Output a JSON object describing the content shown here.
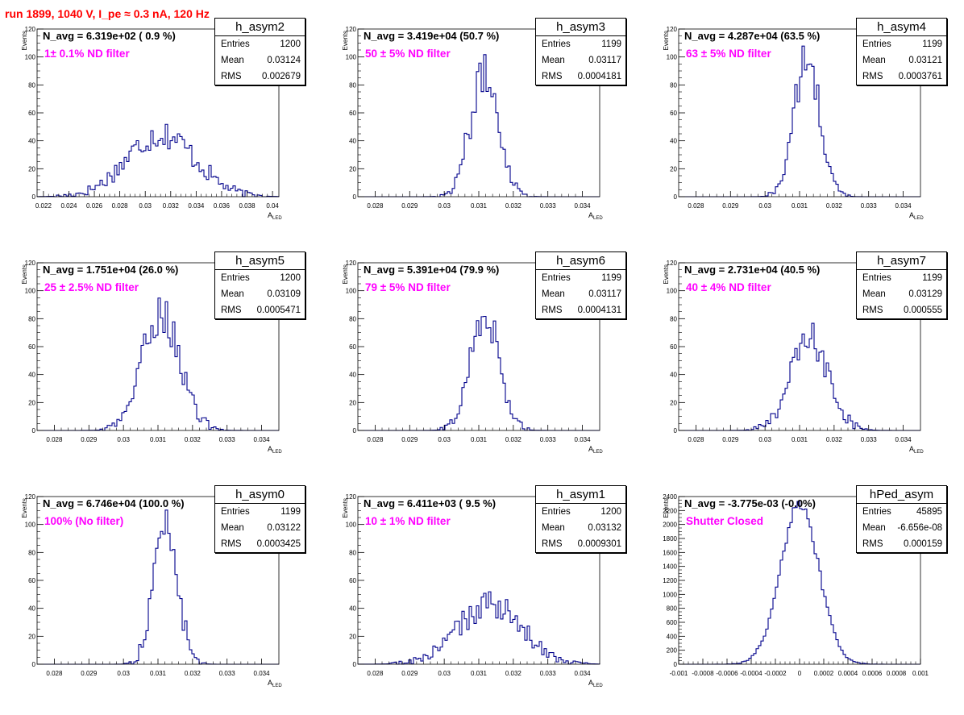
{
  "page": {
    "title": "run 1899,  1040 V, I_pe ≈ 0.3 nA, 120 Hz",
    "colors": {
      "title": "#ff0000",
      "histogram": "#00008b",
      "annotation": "#ff00ff",
      "axis": "#000000"
    }
  },
  "labels": {
    "entries": "Entries",
    "mean": "Mean",
    "rms": "RMS"
  },
  "chart_data": [
    {
      "type": "histogram",
      "name": "h_asym2",
      "header": "N_avg = 6.319e+02 ( 0.9 %)",
      "annotation": "1± 0.1% ND filter",
      "stats": {
        "entries": "1200",
        "mean": "0.03124",
        "rms": "0.002679"
      },
      "xlabel": "A",
      "xlabel_sub": "LED",
      "ylabel": "Events",
      "xlim": [
        0.0215,
        0.0405
      ],
      "ylim": [
        0,
        120
      ],
      "xticks": [
        0.022,
        0.024,
        0.026,
        0.028,
        0.03,
        0.032,
        0.034,
        0.036,
        0.038,
        0.04
      ],
      "xtick_labels": [
        "0.022",
        "0.024",
        "0.026",
        "0.028",
        "0.03",
        "0.032",
        "0.034",
        "0.036",
        "0.038",
        "0.04"
      ],
      "yticks": [
        0,
        20,
        40,
        60,
        80,
        100,
        120
      ],
      "ytick_labels": [
        "0",
        "20",
        "40",
        "60",
        "80",
        "100",
        "120"
      ],
      "mean": 0.03124,
      "rms": 0.002679,
      "entries": 1200,
      "bins": 100,
      "peak": 45
    },
    {
      "type": "histogram",
      "name": "h_asym3",
      "header": "N_avg = 3.419e+04 (50.7 %)",
      "annotation": "50 ± 5% ND filter",
      "stats": {
        "entries": "1199",
        "mean": "0.03117",
        "rms": "0.0004181"
      },
      "xlabel": "A",
      "xlabel_sub": "LED",
      "ylabel": "Events",
      "xlim": [
        0.0275,
        0.0345
      ],
      "ylim": [
        0,
        120
      ],
      "xticks": [
        0.028,
        0.029,
        0.03,
        0.031,
        0.032,
        0.033,
        0.034
      ],
      "xtick_labels": [
        "0.028",
        "0.029",
        "0.03",
        "0.031",
        "0.032",
        "0.033",
        "0.034"
      ],
      "yticks": [
        0,
        20,
        40,
        60,
        80,
        100,
        120
      ],
      "ytick_labels": [
        "0",
        "20",
        "40",
        "60",
        "80",
        "100",
        "120"
      ],
      "mean": 0.03117,
      "rms": 0.0004181,
      "entries": 1199,
      "bins": 100,
      "peak": 87
    },
    {
      "type": "histogram",
      "name": "h_asym4",
      "header": "N_avg = 4.287e+04 (63.5 %)",
      "annotation": "63 ± 5% ND filter",
      "stats": {
        "entries": "1199",
        "mean": "0.03121",
        "rms": "0.0003761"
      },
      "xlabel": "A",
      "xlabel_sub": "LED",
      "ylabel": "Events",
      "xlim": [
        0.0275,
        0.0345
      ],
      "ylim": [
        0,
        120
      ],
      "xticks": [
        0.028,
        0.029,
        0.03,
        0.031,
        0.032,
        0.033,
        0.034
      ],
      "xtick_labels": [
        "0.028",
        "0.029",
        "0.03",
        "0.031",
        "0.032",
        "0.033",
        "0.034"
      ],
      "yticks": [
        0,
        20,
        40,
        60,
        80,
        100,
        120
      ],
      "ytick_labels": [
        "0",
        "20",
        "40",
        "60",
        "80",
        "100",
        "120"
      ],
      "mean": 0.03121,
      "rms": 0.0003761,
      "entries": 1199,
      "bins": 100,
      "peak": 97
    },
    {
      "type": "histogram",
      "name": "h_asym5",
      "header": "N_avg = 1.751e+04 (26.0 %)",
      "annotation": "25 ± 2.5% ND filter",
      "stats": {
        "entries": "1200",
        "mean": "0.03109",
        "rms": "0.0005471"
      },
      "xlabel": "A",
      "xlabel_sub": "LED",
      "ylabel": "Events",
      "xlim": [
        0.0275,
        0.0345
      ],
      "ylim": [
        0,
        120
      ],
      "xticks": [
        0.028,
        0.029,
        0.03,
        0.031,
        0.032,
        0.033,
        0.034
      ],
      "xtick_labels": [
        "0.028",
        "0.029",
        "0.03",
        "0.031",
        "0.032",
        "0.033",
        "0.034"
      ],
      "yticks": [
        0,
        20,
        40,
        60,
        80,
        100,
        120
      ],
      "ytick_labels": [
        "0",
        "20",
        "40",
        "60",
        "80",
        "100",
        "120"
      ],
      "mean": 0.03109,
      "rms": 0.0005471,
      "entries": 1200,
      "bins": 100,
      "peak": 84
    },
    {
      "type": "histogram",
      "name": "h_asym6",
      "header": "N_avg = 5.391e+04 (79.9 %)",
      "annotation": "79 ± 5% ND filter",
      "stats": {
        "entries": "1199",
        "mean": "0.03117",
        "rms": "0.0004131"
      },
      "xlabel": "A",
      "xlabel_sub": "LED",
      "ylabel": "Events",
      "xlim": [
        0.0275,
        0.0345
      ],
      "ylim": [
        0,
        120
      ],
      "xticks": [
        0.028,
        0.029,
        0.03,
        0.031,
        0.032,
        0.033,
        0.034
      ],
      "xtick_labels": [
        "0.028",
        "0.029",
        "0.03",
        "0.031",
        "0.032",
        "0.033",
        "0.034"
      ],
      "yticks": [
        0,
        20,
        40,
        60,
        80,
        100,
        120
      ],
      "ytick_labels": [
        "0",
        "20",
        "40",
        "60",
        "80",
        "100",
        "120"
      ],
      "mean": 0.03117,
      "rms": 0.0004131,
      "entries": 1199,
      "bins": 100,
      "peak": 85
    },
    {
      "type": "histogram",
      "name": "h_asym7",
      "header": "N_avg = 2.731e+04 (40.5 %)",
      "annotation": "40 ± 4% ND filter",
      "stats": {
        "entries": "1199",
        "mean": "0.03129",
        "rms": "0.000555"
      },
      "xlabel": "A",
      "xlabel_sub": "LED",
      "ylabel": "Events",
      "xlim": [
        0.0275,
        0.0345
      ],
      "ylim": [
        0,
        120
      ],
      "xticks": [
        0.028,
        0.029,
        0.03,
        0.031,
        0.032,
        0.033,
        0.034
      ],
      "xtick_labels": [
        "0.028",
        "0.029",
        "0.03",
        "0.031",
        "0.032",
        "0.033",
        "0.034"
      ],
      "yticks": [
        0,
        20,
        40,
        60,
        80,
        100,
        120
      ],
      "ytick_labels": [
        "0",
        "20",
        "40",
        "60",
        "80",
        "100",
        "120"
      ],
      "mean": 0.03129,
      "rms": 0.000555,
      "entries": 1199,
      "bins": 100,
      "peak": 65
    },
    {
      "type": "histogram",
      "name": "h_asym0",
      "header": "N_avg = 6.746e+04 (100.0 %)",
      "annotation": "100% (No filter)",
      "stats": {
        "entries": "1199",
        "mean": "0.03122",
        "rms": "0.0003425"
      },
      "xlabel": "A",
      "xlabel_sub": "LED",
      "ylabel": "Events",
      "xlim": [
        0.0275,
        0.0345
      ],
      "ylim": [
        0,
        120
      ],
      "xticks": [
        0.028,
        0.029,
        0.03,
        0.031,
        0.032,
        0.033,
        0.034
      ],
      "xtick_labels": [
        "0.028",
        "0.029",
        "0.03",
        "0.031",
        "0.032",
        "0.033",
        "0.034"
      ],
      "yticks": [
        0,
        20,
        40,
        60,
        80,
        100,
        120
      ],
      "ytick_labels": [
        "0",
        "20",
        "40",
        "60",
        "80",
        "100",
        "120"
      ],
      "mean": 0.03122,
      "rms": 0.0003425,
      "entries": 1199,
      "bins": 100,
      "peak": 101
    },
    {
      "type": "histogram",
      "name": "h_asym1",
      "header": "N_avg = 6.411e+03 ( 9.5 %)",
      "annotation": "10 ± 1% ND filter",
      "stats": {
        "entries": "1200",
        "mean": "0.03132",
        "rms": "0.0009301"
      },
      "xlabel": "A",
      "xlabel_sub": "LED",
      "ylabel": "Events",
      "xlim": [
        0.0275,
        0.0345
      ],
      "ylim": [
        0,
        120
      ],
      "xticks": [
        0.028,
        0.029,
        0.03,
        0.031,
        0.032,
        0.033,
        0.034
      ],
      "xtick_labels": [
        "0.028",
        "0.029",
        "0.03",
        "0.031",
        "0.032",
        "0.033",
        "0.034"
      ],
      "yticks": [
        0,
        20,
        40,
        60,
        80,
        100,
        120
      ],
      "ytick_labels": [
        "0",
        "20",
        "40",
        "60",
        "80",
        "100",
        "120"
      ],
      "mean": 0.03132,
      "rms": 0.0009301,
      "entries": 1200,
      "bins": 100,
      "peak": 42
    },
    {
      "type": "histogram",
      "name": "hPed_asym",
      "header": "N_avg = -3.775e-03 (-0.0%)",
      "annotation": "Shutter Closed",
      "stats": {
        "entries": "45895",
        "mean": "-6.656e-08",
        "rms": "0.000159"
      },
      "xlabel": "",
      "xlabel_sub": "",
      "ylabel": "Events",
      "xlim": [
        -0.001,
        0.001
      ],
      "ylim": [
        0,
        2400
      ],
      "xticks": [
        -0.001,
        -0.0008,
        -0.0006,
        -0.0004,
        -0.0002,
        0,
        0.0002,
        0.0004,
        0.0006,
        0.0008,
        0.001
      ],
      "xtick_labels": [
        "-0.001",
        "-0.0008",
        "-0.0006",
        "-0.0004",
        "-0.0002",
        "0",
        "0.0002",
        "0.0004",
        "0.0006",
        "0.0008",
        "0.001"
      ],
      "yticks": [
        0,
        200,
        400,
        600,
        800,
        1000,
        1200,
        1400,
        1600,
        1800,
        2000,
        2200,
        2400
      ],
      "ytick_labels": [
        "0",
        "200",
        "400",
        "600",
        "800",
        "1000",
        "1200",
        "1400",
        "1600",
        "1800",
        "2000",
        "2200",
        "2400"
      ],
      "mean": 0.0,
      "rms": 0.000159,
      "entries": 45895,
      "bins": 100,
      "peak": 2280
    }
  ]
}
